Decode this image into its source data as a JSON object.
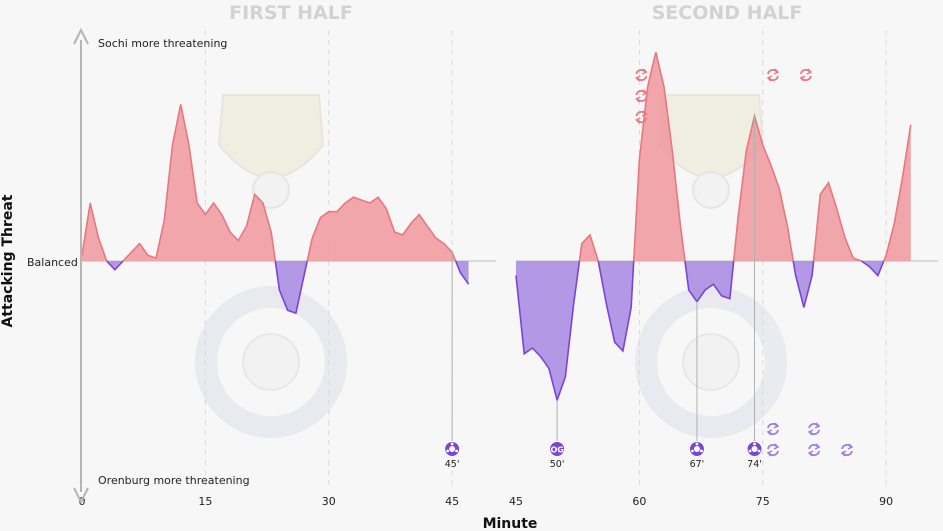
{
  "chart_data": {
    "type": "area",
    "title_left": "FIRST HALF",
    "title_right": "SECOND HALF",
    "xlabel": "Minute",
    "ylabel": "Attacking Threat",
    "y_top_label": "Sochi more threatening",
    "y_mid_label": "Balanced",
    "y_bottom_label": "Orenburg more threatening",
    "ylim": [
      -100,
      100
    ],
    "grid": "vertical dashed lines every 15 minutes",
    "colors": {
      "sochi": "#e8777f",
      "sochi_fill": "#ef9ea3",
      "orenburg": "#7a44d8",
      "orenburg_fill": "#ad8fe4",
      "axis": "#b5b5b5",
      "grid": "#d9d9d9",
      "event_line": "#b0b0b0"
    },
    "halves": [
      {
        "name": "first",
        "xlim": [
          0,
          48
        ],
        "ticks": [
          {
            "value": 0,
            "label": "0"
          },
          {
            "value": 15,
            "label": "15"
          },
          {
            "value": 30,
            "label": "30"
          },
          {
            "value": 45,
            "label": "45"
          }
        ],
        "x": [
          0,
          1,
          2,
          3,
          4,
          5,
          6,
          7,
          8,
          9,
          10,
          11,
          12,
          13,
          14,
          15,
          16,
          17,
          18,
          19,
          20,
          21,
          22,
          23,
          24,
          25,
          26,
          27,
          28,
          29,
          30,
          31,
          32,
          33,
          34,
          35,
          36,
          37,
          38,
          39,
          40,
          41,
          42,
          43,
          44,
          45,
          46,
          47
        ],
        "threat": [
          2,
          20,
          8,
          0,
          -3,
          0,
          3,
          6,
          2,
          1,
          14,
          40,
          54,
          40,
          20,
          16,
          20,
          16,
          10,
          7,
          12,
          23,
          20,
          10,
          -10,
          -17,
          -18,
          -5,
          8,
          15,
          17,
          17,
          20,
          22,
          21,
          20,
          22,
          18,
          10,
          9,
          13,
          16,
          12,
          8,
          6,
          3,
          -4,
          -8
        ]
      },
      {
        "name": "second",
        "xlim": [
          45,
          94
        ],
        "ticks": [
          {
            "value": 45,
            "label": "45"
          },
          {
            "value": 60,
            "label": "60"
          },
          {
            "value": 75,
            "label": "75"
          },
          {
            "value": 90,
            "label": "90"
          }
        ],
        "x": [
          45,
          46,
          47,
          48,
          49,
          50,
          51,
          52,
          53,
          54,
          55,
          56,
          57,
          58,
          59,
          60,
          61,
          62,
          63,
          64,
          65,
          66,
          67,
          68,
          69,
          70,
          71,
          72,
          73,
          74,
          75,
          76,
          77,
          78,
          79,
          80,
          81,
          82,
          83,
          84,
          85,
          86,
          87,
          88,
          89,
          90,
          91,
          92,
          93
        ],
        "threat": [
          -5,
          -32,
          -30,
          -33,
          -37,
          -48,
          -40,
          -15,
          6,
          9,
          0,
          -15,
          -28,
          -31,
          -16,
          35,
          60,
          72,
          60,
          38,
          12,
          -10,
          -14,
          -10,
          -8,
          -12,
          -13,
          15,
          38,
          50,
          40,
          33,
          25,
          12,
          -5,
          -16,
          -5,
          23,
          27,
          18,
          8,
          1,
          0,
          -2,
          -5,
          2,
          13,
          29,
          47
        ]
      }
    ],
    "events": [
      {
        "type": "goal",
        "team": "orenburg",
        "minute": 45,
        "half": "first",
        "label": "45'"
      },
      {
        "type": "own-goal",
        "team": "orenburg",
        "minute": 50,
        "half": "second",
        "label": "50'",
        "badge": "OG"
      },
      {
        "type": "goal",
        "team": "orenburg",
        "minute": 67,
        "half": "second",
        "label": "67'"
      },
      {
        "type": "goal",
        "team": "orenburg",
        "minute": 74,
        "half": "second",
        "label": "74'"
      }
    ],
    "substitutions": {
      "sochi": [
        {
          "minute": 60,
          "stack": 3
        },
        {
          "minute": 76,
          "stack": 1
        },
        {
          "minute": 80,
          "stack": 1
        }
      ],
      "orenburg": [
        {
          "minute": 76,
          "stack": 2
        },
        {
          "minute": 81,
          "stack": 2
        },
        {
          "minute": 85,
          "stack": 1
        }
      ]
    }
  }
}
